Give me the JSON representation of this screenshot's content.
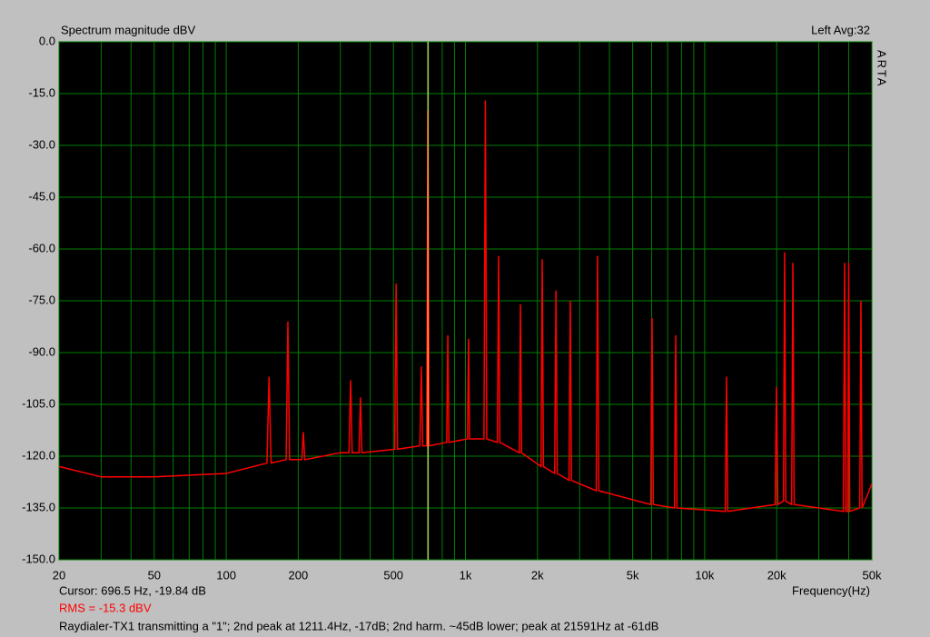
{
  "chart_data": {
    "type": "line",
    "title": "Spectrum magnitude dBV",
    "status": "Left  Avg:32",
    "brand": "ARTA",
    "x_label": "Frequency(Hz)",
    "log_x": true,
    "grid": true,
    "grid_color": "#008000",
    "background": "#000000",
    "cursor": {
      "label": "Cursor:   696.5 Hz, -19.84 dB",
      "x": 696.5,
      "color": "#ffff80"
    },
    "rms": "RMS =  -15.3 dBV",
    "caption": "Raydialer-TX1 transmitting a \"1\"; 2nd peak at 1211.4Hz, -17dB; 2nd harm. ~45dB lower; peak at 21591Hz at -61dB",
    "xlim": [
      20,
      50000
    ],
    "ylim": [
      -150,
      0
    ],
    "xticks": [
      20,
      50,
      100,
      200,
      500,
      {
        "value": 1000,
        "label": "1k"
      },
      {
        "value": 2000,
        "label": "2k"
      },
      {
        "value": 5000,
        "label": "5k"
      },
      {
        "value": 10000,
        "label": "10k"
      },
      {
        "value": 20000,
        "label": "20k"
      },
      {
        "value": 50000,
        "label": "50k"
      }
    ],
    "xminorticks": [
      30,
      40,
      60,
      70,
      80,
      90,
      300,
      400,
      600,
      700,
      800,
      900,
      3000,
      4000,
      6000,
      7000,
      8000,
      9000,
      30000,
      40000
    ],
    "yticks": [
      {
        "value": 0,
        "label": "0.0"
      },
      {
        "value": -15,
        "label": "-15.0"
      },
      {
        "value": -30,
        "label": "-30.0"
      },
      {
        "value": -45,
        "label": "-45.0"
      },
      {
        "value": -60,
        "label": "-60.0"
      },
      {
        "value": -75,
        "label": "-75.0"
      },
      {
        "value": -90,
        "label": "-90.0"
      },
      {
        "value": -105,
        "label": "-105.0"
      },
      {
        "value": -120,
        "label": "-120.0"
      },
      {
        "value": -135,
        "label": "-135.0"
      },
      {
        "value": -150,
        "label": "-150.0"
      }
    ],
    "x": [
      20,
      30,
      50,
      100,
      148,
      151,
      154,
      178,
      181,
      184,
      207,
      210,
      213,
      300,
      326,
      331,
      336,
      359,
      364,
      369,
      506,
      513,
      520,
      645,
      654,
      663,
      688,
      696.5,
      705,
      835,
      844,
      853,
      1020,
      1030,
      1040,
      1195,
      1211.4,
      1228,
      1360,
      1376,
      1392,
      1680,
      1698,
      1716,
      2070,
      2094,
      2118,
      2360,
      2390,
      2420,
      2710,
      2742,
      2774,
      3520,
      3565,
      3610,
      5950,
      6025,
      6100,
      7480,
      7570,
      7660,
      12200,
      12340,
      12480,
      19700,
      19960,
      20220,
      21350,
      21591,
      21830,
      23100,
      23380,
      23660,
      38000,
      38460,
      38920,
      39600,
      40000,
      40400,
      44500,
      45000,
      45500,
      50000
    ],
    "series": [
      {
        "color": "#ff0000",
        "values": [
          -123,
          -126,
          -126,
          -125,
          -122,
          -97,
          -122,
          -121,
          -81,
          -121,
          -121,
          -113,
          -121,
          -119,
          -119,
          -98,
          -119,
          -119,
          -103,
          -119,
          -118,
          -70,
          -118,
          -117,
          -94,
          -117,
          -117,
          -19.84,
          -117,
          -116,
          -85,
          -116,
          -115,
          -86,
          -115,
          -115,
          -17,
          -115,
          -116,
          -62,
          -116,
          -119,
          -76,
          -119,
          -123,
          -63,
          -123,
          -125,
          -72,
          -125,
          -127,
          -75,
          -127,
          -130,
          -62,
          -130,
          -134,
          -80,
          -134,
          -135,
          -85,
          -135,
          -136,
          -97,
          -136,
          -134,
          -100,
          -134,
          -133,
          -61,
          -133,
          -134,
          -64,
          -134,
          -136,
          -64,
          -136,
          -136,
          -64,
          -136,
          -135,
          -75,
          -135,
          -128
        ]
      }
    ]
  }
}
